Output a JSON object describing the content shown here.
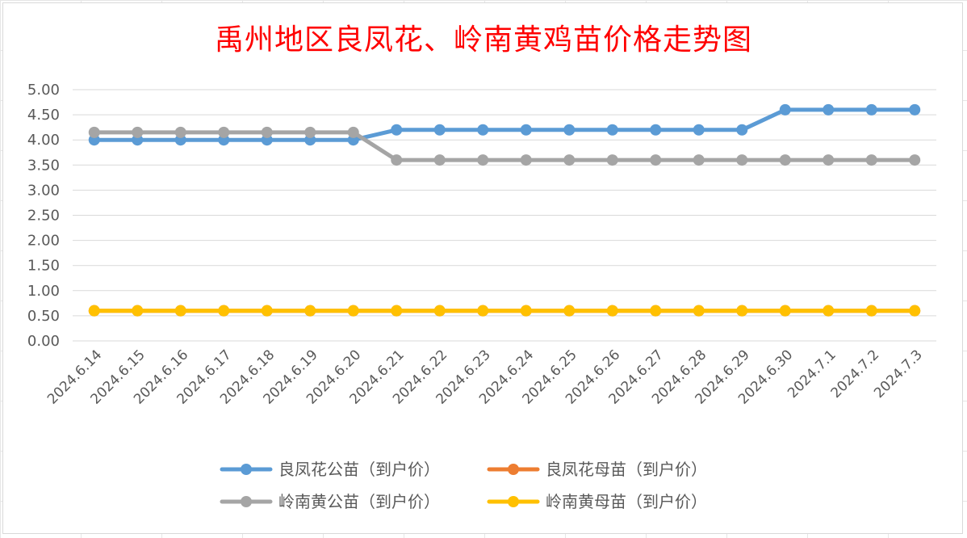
{
  "chart_data": {
    "type": "line",
    "title": "禹州地区良凤花、岭南黄鸡苗价格走势图",
    "xlabel": "",
    "ylabel": "",
    "ylim": [
      0,
      5
    ],
    "yticks": [
      "0.00",
      "0.50",
      "1.00",
      "1.50",
      "2.00",
      "2.50",
      "3.00",
      "3.50",
      "4.00",
      "4.50",
      "5.00"
    ],
    "grid": true,
    "legend_position": "bottom",
    "categories": [
      "2024.6.14",
      "2024.6.15",
      "2024.6.16",
      "2024.6.17",
      "2024.6.18",
      "2024.6.19",
      "2024.6.20",
      "2024.6.21",
      "2024.6.22",
      "2024.6.23",
      "2024.6.24",
      "2024.6.25",
      "2024.6.26",
      "2024.6.27",
      "2024.6.28",
      "2024.6.29",
      "2024.6.30",
      "2024.7.1",
      "2024.7.2",
      "2024.7.3"
    ],
    "series": [
      {
        "name": "良凤花公苗（到户价）",
        "color": "#5b9bd5",
        "values": [
          4.0,
          4.0,
          4.0,
          4.0,
          4.0,
          4.0,
          4.0,
          4.2,
          4.2,
          4.2,
          4.2,
          4.2,
          4.2,
          4.2,
          4.2,
          4.2,
          4.6,
          4.6,
          4.6,
          4.6
        ]
      },
      {
        "name": "良凤花母苗（到户价）",
        "color": "#ed7d31",
        "values": [
          0.6,
          0.6,
          0.6,
          0.6,
          0.6,
          0.6,
          0.6,
          0.6,
          0.6,
          0.6,
          0.6,
          0.6,
          0.6,
          0.6,
          0.6,
          0.6,
          0.6,
          0.6,
          0.6,
          0.6
        ]
      },
      {
        "name": "岭南黄公苗（到户价）",
        "color": "#a5a5a5",
        "values": [
          4.15,
          4.15,
          4.15,
          4.15,
          4.15,
          4.15,
          4.15,
          3.6,
          3.6,
          3.6,
          3.6,
          3.6,
          3.6,
          3.6,
          3.6,
          3.6,
          3.6,
          3.6,
          3.6,
          3.6
        ]
      },
      {
        "name": "岭南黄母苗（到户价）",
        "color": "#ffc000",
        "values": [
          0.6,
          0.6,
          0.6,
          0.6,
          0.6,
          0.6,
          0.6,
          0.6,
          0.6,
          0.6,
          0.6,
          0.6,
          0.6,
          0.6,
          0.6,
          0.6,
          0.6,
          0.6,
          0.6,
          0.6
        ]
      }
    ]
  }
}
